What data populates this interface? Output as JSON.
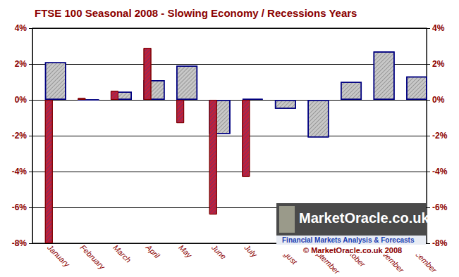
{
  "chart_data": {
    "type": "bar",
    "title": "FTSE 100 Seasonal 2008 - Slowing Economy / Recessions Years",
    "categories": [
      "January",
      "February",
      "March",
      "April",
      "May",
      "June",
      "July",
      "August",
      "September",
      "October",
      "November",
      "December"
    ],
    "series": [
      {
        "color": "#c8c8c8",
        "values": [
          2.1,
          0,
          0.45,
          1.1,
          1.9,
          -1.9,
          0.05,
          -0.5,
          -2.1,
          1.0,
          2.7,
          1.3
        ]
      },
      {
        "color": "#c0203a",
        "values": [
          -8.0,
          0.1,
          0.5,
          2.9,
          -1.3,
          -6.4,
          -4.3,
          null,
          null,
          null,
          null,
          null
        ]
      }
    ],
    "ylim": [
      -8,
      4
    ],
    "yticks": [
      {
        "value": -8,
        "label": "-8%"
      },
      {
        "value": -6,
        "label": "-6%"
      },
      {
        "value": -4,
        "label": "-4%"
      },
      {
        "value": -2,
        "label": "-2%"
      },
      {
        "value": 0,
        "label": "0%"
      },
      {
        "value": 2,
        "label": "2%"
      },
      {
        "value": 4,
        "label": "4%"
      }
    ],
    "grid": true,
    "annotations": [
      "MarketOracle.co.uk",
      "Financial Markets Analysis & Forecasts",
      "© MarketOracle.co.uk 2008"
    ]
  }
}
